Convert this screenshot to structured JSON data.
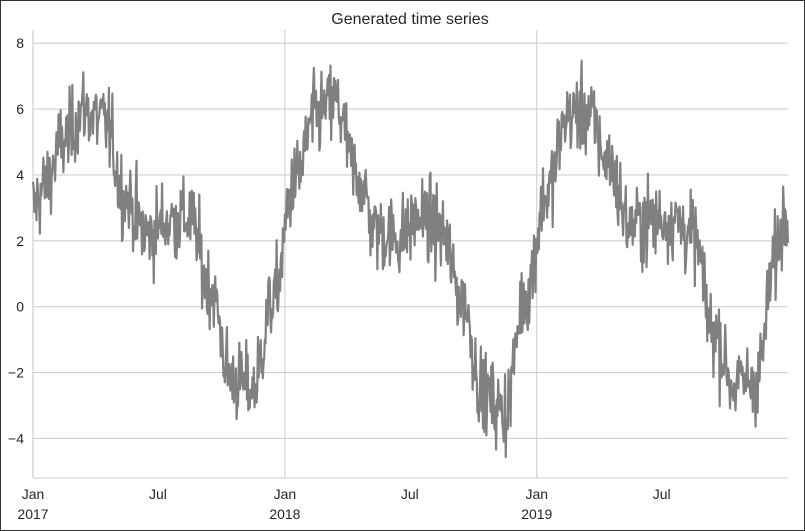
{
  "chart_data": {
    "type": "line",
    "title": "Generated time series",
    "xlabel": "",
    "ylabel": "",
    "x_start": "2017-01-01",
    "x_end": "2019-12-31",
    "frequency": "daily",
    "ylim": [
      -5.2,
      8.4
    ],
    "y_ticks": [
      {
        "value": 8,
        "label": "8"
      },
      {
        "value": 6,
        "label": "6"
      },
      {
        "value": 4,
        "label": "4"
      },
      {
        "value": 2,
        "label": "2"
      },
      {
        "value": 0,
        "label": "0"
      },
      {
        "value": -2,
        "label": "−2"
      },
      {
        "value": -4,
        "label": "−4"
      }
    ],
    "x_ticks": [
      {
        "date": "2017-01-01",
        "label": "Jan",
        "year": "2017",
        "major": true
      },
      {
        "date": "2017-07-01",
        "label": "Jul",
        "year": "",
        "major": false
      },
      {
        "date": "2018-01-01",
        "label": "Jan",
        "year": "2018",
        "major": true
      },
      {
        "date": "2018-07-01",
        "label": "Jul",
        "year": "",
        "major": false
      },
      {
        "date": "2019-01-01",
        "label": "Jan",
        "year": "2019",
        "major": true
      },
      {
        "date": "2019-07-01",
        "label": "Jul",
        "year": "",
        "major": false
      }
    ],
    "grid": true,
    "series_color": "#808080",
    "monthly_mean": [
      {
        "date": "2017-01-15",
        "value": 3.6
      },
      {
        "date": "2017-02-15",
        "value": 5.0
      },
      {
        "date": "2017-03-15",
        "value": 6.0
      },
      {
        "date": "2017-04-15",
        "value": 5.6
      },
      {
        "date": "2017-05-15",
        "value": 3.3
      },
      {
        "date": "2017-06-15",
        "value": 2.2
      },
      {
        "date": "2017-07-15",
        "value": 2.6
      },
      {
        "date": "2017-08-15",
        "value": 2.7
      },
      {
        "date": "2017-09-15",
        "value": 0.6
      },
      {
        "date": "2017-10-15",
        "value": -2.2
      },
      {
        "date": "2017-11-15",
        "value": -2.5
      },
      {
        "date": "2017-12-15",
        "value": 0.2
      },
      {
        "date": "2018-01-15",
        "value": 3.8
      },
      {
        "date": "2018-02-15",
        "value": 5.8
      },
      {
        "date": "2018-03-15",
        "value": 6.2
      },
      {
        "date": "2018-04-15",
        "value": 4.0
      },
      {
        "date": "2018-05-15",
        "value": 2.3
      },
      {
        "date": "2018-06-15",
        "value": 2.1
      },
      {
        "date": "2018-07-15",
        "value": 2.7
      },
      {
        "date": "2018-08-15",
        "value": 2.3
      },
      {
        "date": "2018-09-15",
        "value": 0.2
      },
      {
        "date": "2018-10-15",
        "value": -2.6
      },
      {
        "date": "2018-11-15",
        "value": -3.2
      },
      {
        "date": "2018-12-15",
        "value": 0.3
      },
      {
        "date": "2019-01-15",
        "value": 3.4
      },
      {
        "date": "2019-02-15",
        "value": 5.8
      },
      {
        "date": "2019-03-15",
        "value": 5.9
      },
      {
        "date": "2019-04-15",
        "value": 4.4
      },
      {
        "date": "2019-05-15",
        "value": 2.5
      },
      {
        "date": "2019-06-15",
        "value": 2.6
      },
      {
        "date": "2019-07-15",
        "value": 2.7
      },
      {
        "date": "2019-08-15",
        "value": 2.2
      },
      {
        "date": "2019-09-15",
        "value": -0.8
      },
      {
        "date": "2019-10-15",
        "value": -2.4
      },
      {
        "date": "2019-11-15",
        "value": -2.2
      },
      {
        "date": "2019-12-15",
        "value": 1.6
      }
    ]
  }
}
